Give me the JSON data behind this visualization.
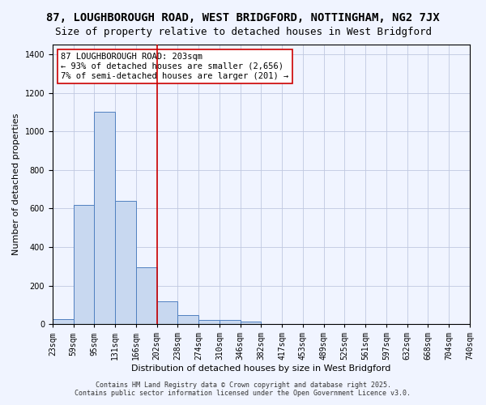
{
  "title_line1": "87, LOUGHBOROUGH ROAD, WEST BRIDGFORD, NOTTINGHAM, NG2 7JX",
  "title_line2": "Size of property relative to detached houses in West Bridgford",
  "xlabel": "Distribution of detached houses by size in West Bridgford",
  "ylabel": "Number of detached properties",
  "annotation_line1": "87 LOUGHBOROUGH ROAD: 203sqm",
  "annotation_line2": "← 93% of detached houses are smaller (2,656)",
  "annotation_line3": "7% of semi-detached houses are larger (201) →",
  "footer_line1": "Contains HM Land Registry data © Crown copyright and database right 2025.",
  "footer_line2": "Contains public sector information licensed under the Open Government Licence v3.0.",
  "bin_labels": [
    "23sqm",
    "59sqm",
    "95sqm",
    "131sqm",
    "166sqm",
    "202sqm",
    "238sqm",
    "274sqm",
    "310sqm",
    "346sqm",
    "382sqm",
    "417sqm",
    "453sqm",
    "489sqm",
    "525sqm",
    "561sqm",
    "597sqm",
    "632sqm",
    "668sqm",
    "704sqm",
    "740sqm"
  ],
  "bar_values": [
    28,
    620,
    1100,
    640,
    295,
    120,
    47,
    22,
    20,
    13,
    0,
    0,
    0,
    0,
    0,
    0,
    0,
    0,
    0,
    0
  ],
  "bar_color": "#c8d8f0",
  "bar_edge_color": "#5080c0",
  "vline_x": 5.0,
  "vline_color": "#cc0000",
  "background_color": "#f0f4ff",
  "grid_color": "#c0c8e0",
  "ylim": [
    0,
    1450
  ],
  "annotation_box_color": "#ffffff",
  "annotation_box_edge": "#cc0000",
  "title_fontsize": 10,
  "subtitle_fontsize": 9,
  "axis_label_fontsize": 8,
  "tick_fontsize": 7,
  "annotation_fontsize": 7.5,
  "footer_fontsize": 6
}
